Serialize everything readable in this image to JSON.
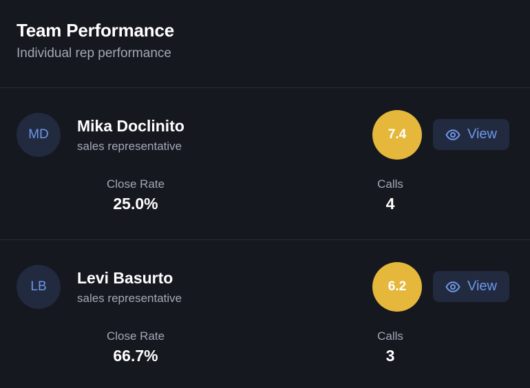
{
  "header": {
    "title": "Team Performance",
    "subtitle": "Individual rep performance"
  },
  "colors": {
    "background": "#16181f",
    "accent_blue": "#6d98e8",
    "score_yellow": "#e5b73b",
    "muted_text": "#a3a8b4"
  },
  "reps": [
    {
      "initials": "MD",
      "name": "Mika Doclinito",
      "role": "sales representative",
      "score": "7.4",
      "view_label": "View",
      "view_icon": "eye-icon",
      "close_rate_label": "Close Rate",
      "close_rate": "25.0%",
      "calls_label": "Calls",
      "calls": "4"
    },
    {
      "initials": "LB",
      "name": "Levi Basurto",
      "role": "sales representative",
      "score": "6.2",
      "view_label": "View",
      "view_icon": "eye-icon",
      "close_rate_label": "Close Rate",
      "close_rate": "66.7%",
      "calls_label": "Calls",
      "calls": "3"
    }
  ]
}
